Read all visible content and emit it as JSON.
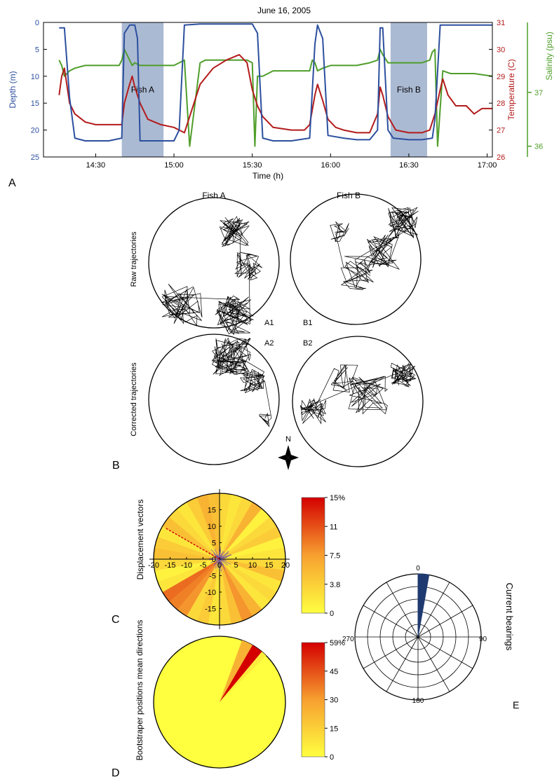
{
  "panel_labels": {
    "a": "A",
    "b": "B",
    "c": "C",
    "d": "D",
    "e": "E"
  },
  "colors": {
    "depth": "#2c4f9e",
    "temperature": "#b31b1b",
    "salinity": "#4f9e2a",
    "shade": "#8fa3c4"
  },
  "chart_data": [
    {
      "id": "A",
      "type": "line",
      "title": "June 16, 2005",
      "xlabel": "Time (h)",
      "x_ticks": [
        "14:30",
        "15:00",
        "15:30",
        "16:00",
        "16:30",
        "17:00"
      ],
      "x_tick_minutes": [
        870,
        900,
        930,
        960,
        990,
        1020
      ],
      "xlim_minutes": [
        850,
        1022
      ],
      "shaded_regions": [
        {
          "label": "Fish A",
          "start": 880,
          "end": 896
        },
        {
          "label": "Fish B",
          "start": 983,
          "end": 997
        }
      ],
      "axes": {
        "depth": {
          "label": "Depth (m)",
          "ticks": [
            0,
            5,
            10,
            15,
            20,
            25
          ],
          "range": [
            0,
            25
          ],
          "inverted": true
        },
        "temperature": {
          "label": "Temperature (C)",
          "ticks": [
            26,
            27,
            28,
            29,
            30,
            31
          ],
          "range": [
            26,
            31
          ]
        },
        "salinity": {
          "label": "Salinity (psu)",
          "ticks": [
            36,
            37
          ],
          "range": [
            35.8,
            38.3
          ]
        }
      },
      "series": [
        {
          "key": "depth",
          "x": [
            856,
            858,
            860,
            862,
            866,
            870,
            875,
            880,
            881,
            883,
            885,
            886,
            887,
            895,
            900,
            902,
            904,
            910,
            920,
            930,
            932,
            934,
            938,
            945,
            952,
            954,
            955,
            957,
            959,
            965,
            970,
            975,
            978,
            979,
            980,
            982,
            984,
            990,
            995,
            999,
            1000,
            1002,
            1004,
            1010,
            1022
          ],
          "y": [
            1,
            1,
            14,
            21.5,
            22,
            22,
            22,
            21.5,
            2,
            0.5,
            0.5,
            3,
            22,
            22,
            22,
            20,
            0.5,
            0.3,
            0.3,
            0.3,
            2,
            21.5,
            22,
            22,
            21.5,
            4,
            0.5,
            3,
            21,
            21.5,
            21.8,
            21.8,
            20,
            1,
            1,
            20,
            21.5,
            21.8,
            21.8,
            21.5,
            18,
            0.5,
            0.5,
            0.5,
            0.5
          ]
        },
        {
          "key": "temperature",
          "x": [
            856,
            857,
            858,
            860,
            862,
            866,
            870,
            875,
            880,
            881,
            883,
            884,
            885,
            887,
            890,
            895,
            900,
            902,
            904,
            906,
            910,
            915,
            920,
            925,
            928,
            930,
            932,
            934,
            938,
            945,
            950,
            952,
            954,
            955,
            957,
            959,
            962,
            965,
            970,
            975,
            978,
            979,
            980,
            982,
            985,
            990,
            995,
            998,
            1000,
            1002,
            1003,
            1005,
            1008,
            1012,
            1015,
            1018,
            1022
          ],
          "y": [
            28.3,
            29,
            29.3,
            28,
            27.6,
            27.3,
            27.2,
            27.2,
            27.2,
            28,
            28.7,
            29.0,
            28.6,
            28.0,
            27.4,
            27.2,
            27.1,
            27.0,
            26.9,
            27.5,
            28.7,
            29.3,
            29.6,
            29.8,
            29.5,
            28.5,
            27.9,
            27.5,
            27.1,
            27.0,
            27.0,
            27.2,
            28.3,
            28.7,
            28.1,
            27.4,
            27.1,
            27.0,
            26.9,
            26.9,
            27.6,
            28.6,
            28.3,
            27.5,
            27.0,
            26.9,
            26.9,
            27.0,
            27.6,
            28.5,
            28.9,
            28.3,
            27.9,
            27.9,
            27.6,
            27.8,
            27.8
          ]
        },
        {
          "key": "salinity",
          "x": [
            856,
            857,
            858,
            860,
            862,
            866,
            870,
            875,
            879,
            880,
            881,
            883,
            884,
            885,
            887,
            890,
            895,
            900,
            902,
            904,
            906,
            910,
            912,
            920,
            928,
            930,
            931,
            932,
            934,
            938,
            945,
            950,
            952,
            953,
            954,
            955,
            957,
            960,
            965,
            970,
            975,
            978,
            979,
            980,
            982,
            985,
            990,
            995,
            998,
            999,
            1000,
            1001,
            1003,
            1006,
            1010,
            1015,
            1022
          ],
          "y": [
            37.6,
            37.5,
            37.3,
            37.4,
            37.45,
            37.5,
            37.5,
            37.5,
            37.5,
            37.6,
            37.8,
            37.6,
            37.5,
            37.55,
            37.5,
            37.5,
            37.5,
            37.5,
            37.55,
            37.6,
            36,
            37.55,
            37.6,
            37.6,
            37.6,
            37.55,
            36,
            37.3,
            37.3,
            37.4,
            37.4,
            37.4,
            37.4,
            37.6,
            37.55,
            37.4,
            37.45,
            37.5,
            37.5,
            37.5,
            37.55,
            37.6,
            37.8,
            37.7,
            37.55,
            37.55,
            37.55,
            37.55,
            37.6,
            37.75,
            37.8,
            36,
            37.4,
            37.35,
            37.35,
            37.35,
            37.3
          ]
        }
      ]
    },
    {
      "id": "B",
      "type": "scatter",
      "row_labels": [
        "Raw trajectories",
        "Corrected trajectories"
      ],
      "column_titles": [
        "Fish A",
        "Fish B"
      ],
      "circle_labels": [
        "A1",
        "B1",
        "A2",
        "B2"
      ],
      "compass_label": "N"
    },
    {
      "id": "C",
      "type": "heatmap",
      "ylabel": "Displacement vectors",
      "x_ticks": [
        -20,
        -15,
        -10,
        -5,
        0,
        5,
        10,
        15,
        20
      ],
      "y_ticks": [
        15,
        10,
        5,
        0,
        -5,
        -10,
        -15
      ],
      "range": [
        -20,
        20
      ],
      "colorbar_ticks": [
        "15%",
        "11",
        "7.5",
        "3.8",
        "0"
      ],
      "colorbar_max": 15,
      "sector_values": [
        3,
        2,
        3,
        6,
        1,
        3,
        4,
        1,
        2,
        3,
        5,
        2,
        3,
        2,
        6,
        8,
        5,
        3,
        2,
        4,
        3,
        8,
        9,
        10,
        2,
        1,
        3,
        5,
        4,
        2,
        5,
        3,
        2,
        4,
        6,
        5
      ],
      "mean_vector_bearing": 300
    },
    {
      "id": "D",
      "type": "pie",
      "ylabel": "Bootstraper positions mean directions",
      "colorbar_ticks": [
        "59%",
        "45",
        "30",
        "15",
        "0"
      ],
      "colorbar_max": 59,
      "sectors": [
        {
          "start": 20,
          "end": 30,
          "value": 24
        },
        {
          "start": 30,
          "end": 40,
          "value": 59
        },
        {
          "start": 40,
          "end": 45,
          "value": 6
        }
      ]
    },
    {
      "id": "E",
      "type": "bar",
      "ylabel": "Current bearings",
      "angle_labels": [
        "0",
        "90",
        "180",
        "270"
      ],
      "bearing_bins": [
        {
          "start": 0,
          "end": 10,
          "value": 1
        }
      ],
      "rings": 5,
      "spokes": 12
    }
  ]
}
